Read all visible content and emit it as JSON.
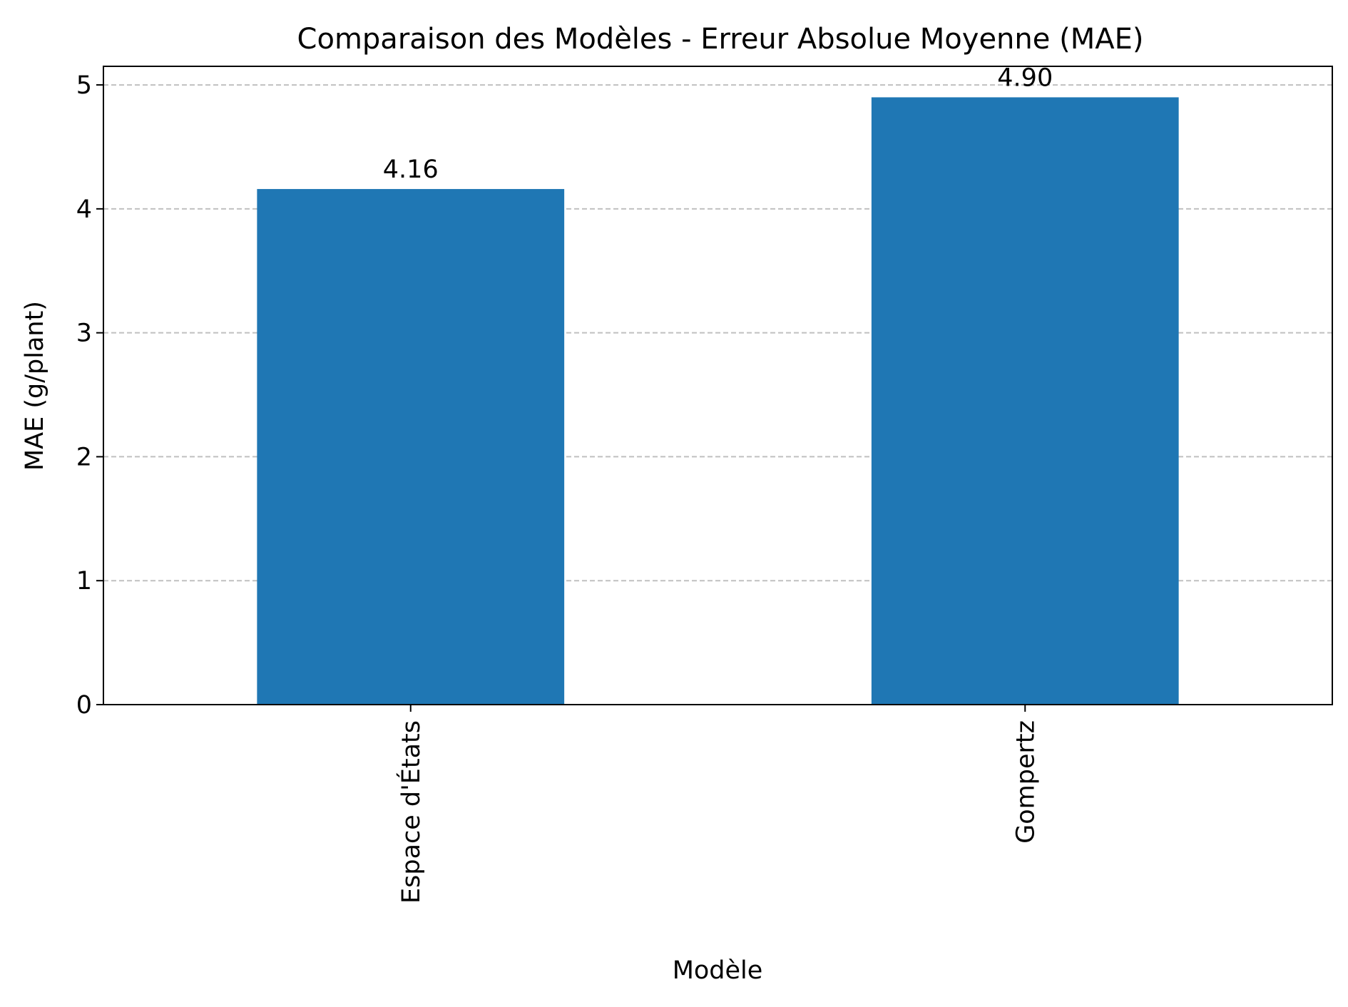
{
  "chart_data": {
    "type": "bar",
    "title": "Comparaison des Modèles - Erreur Absolue Moyenne (MAE)",
    "xlabel": "Modèle",
    "ylabel": "MAE (g/plant)",
    "categories": [
      "Espace d'États",
      "Gompertz"
    ],
    "values": [
      4.16,
      4.9
    ],
    "data_labels": [
      "4.16",
      "4.90"
    ],
    "ylim": [
      0,
      5.15
    ],
    "yticks": [
      0,
      1,
      2,
      3,
      4,
      5
    ],
    "ytick_labels": [
      "0",
      "1",
      "2",
      "3",
      "4",
      "5"
    ],
    "grid": {
      "axis": "y",
      "style": "dashed"
    },
    "x_tick_rotation": "vertical",
    "legend": "none",
    "colors": {
      "bar": "#1f77b4",
      "grid": "#c0c0c0",
      "axes": "#000000"
    }
  }
}
